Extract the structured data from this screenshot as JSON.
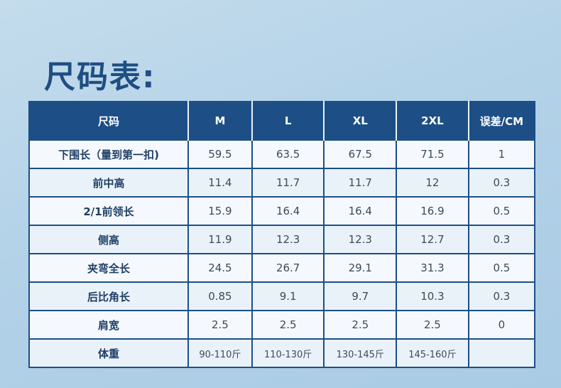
{
  "title": "尺码表:",
  "table": {
    "headers": [
      "尺码",
      "M",
      "L",
      "XL",
      "2XL",
      "误差/CM"
    ],
    "rows": [
      [
        "下围长（量到第一扣)",
        "59.5",
        "63.5",
        "67.5",
        "71.5",
        "1"
      ],
      [
        "前中高",
        "11.4",
        "11.7",
        "11.7",
        "12",
        "0.3"
      ],
      [
        "2/1前领长",
        "15.9",
        "16.4",
        "16.4",
        "16.9",
        "0.5"
      ],
      [
        "侧高",
        "11.9",
        "12.3",
        "12.3",
        "12.7",
        "0.3"
      ],
      [
        "夹弯全长",
        "24.5",
        "26.7",
        "29.1",
        "31.3",
        "0.5"
      ],
      [
        "后比角长",
        "0.85",
        "9.1",
        "9.7",
        "10.3",
        "0.3"
      ],
      [
        "肩宽",
        "2.5",
        "2.5",
        "2.5",
        "2.5",
        "0"
      ],
      [
        "体重",
        "90-110斤",
        "110-130斤",
        "130-145斤",
        "145-160斤",
        ""
      ]
    ]
  },
  "colors": {
    "header_bg": "#1d4f86",
    "title": "#1f4e82",
    "background": "#b3d2e8"
  }
}
